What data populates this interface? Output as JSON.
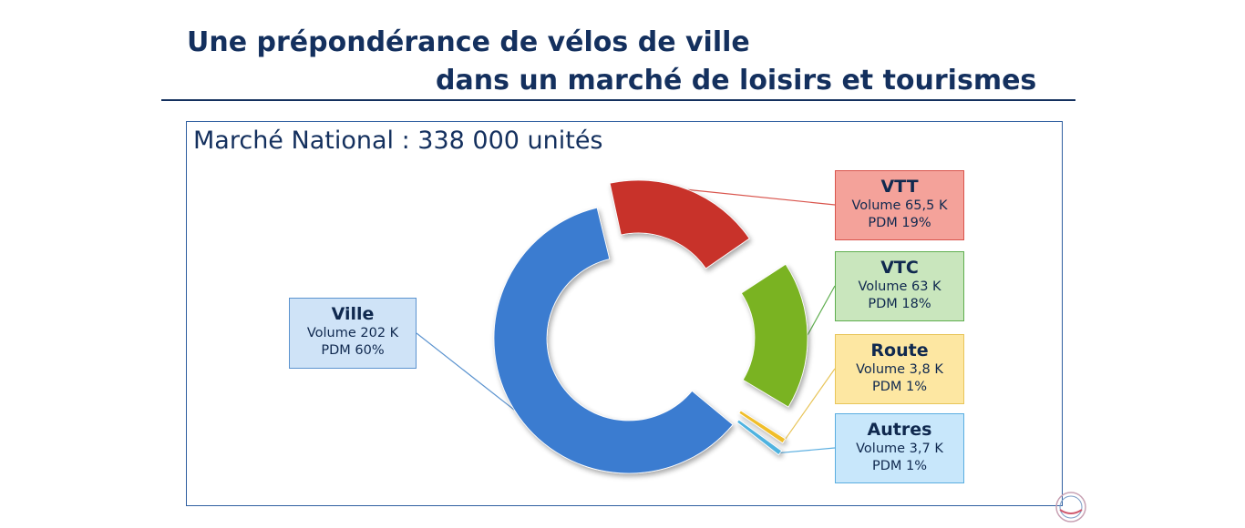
{
  "title": {
    "line1": "Une prépondérance de vélos de ville",
    "line2": "dans un marché de loisirs et tourismes"
  },
  "subtitle": "Marché National : 338 000 unités",
  "chart_data": {
    "type": "pie",
    "variant": "exploded-donut",
    "total_units": 338000,
    "slices": [
      {
        "name": "Ville",
        "volume": "Volume 202 K",
        "pdm": "PDM 60%",
        "share": 60,
        "color": "#3a7bd0",
        "box_fill": "#cfe3f7",
        "box_border": "#5b93cf"
      },
      {
        "name": "VTT",
        "volume": "Volume 65,5 K",
        "pdm": "PDM 19%",
        "share": 19,
        "color": "#c8302c",
        "box_fill": "#f4a29a",
        "box_border": "#d9544c"
      },
      {
        "name": "VTC",
        "volume": "Volume 63 K",
        "pdm": "PDM 18%",
        "share": 18,
        "color": "#7ab323",
        "box_fill": "#c9e6bd",
        "box_border": "#5fae4f"
      },
      {
        "name": "Route",
        "volume": "Volume 3,8 K",
        "pdm": "PDM 1%",
        "share": 1,
        "color": "#f0be2a",
        "box_fill": "#fde7a2",
        "box_border": "#e8c55a"
      },
      {
        "name": "Autres",
        "volume": "Volume 3,7 K",
        "pdm": "PDM 1%",
        "share": 1,
        "color": "#4fb3e0",
        "box_fill": "#c8e7fb",
        "box_border": "#5aaee0"
      }
    ]
  },
  "icons": {
    "logo": "brand-seal-icon"
  }
}
